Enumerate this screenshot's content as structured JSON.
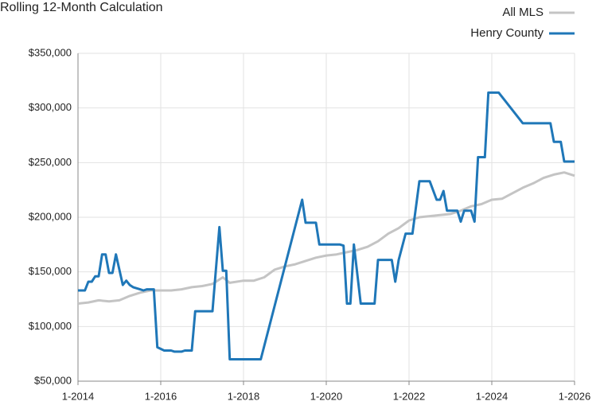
{
  "chart_data": {
    "type": "line",
    "title": "Rolling 12-Month Calculation",
    "legend": "top-right",
    "grid": true,
    "ylim": [
      50000,
      350000
    ],
    "yticks": [
      {
        "value": 50000,
        "label": "$50,000"
      },
      {
        "value": 100000,
        "label": "$100,000"
      },
      {
        "value": 150000,
        "label": "$150,000"
      },
      {
        "value": 200000,
        "label": "$200,000"
      },
      {
        "value": 250000,
        "label": "$250,000"
      },
      {
        "value": 300000,
        "label": "$300,000"
      },
      {
        "value": 350000,
        "label": "$350,000"
      }
    ],
    "xlim": [
      "1-2014",
      "1-2026"
    ],
    "xticks": [
      "1-2014",
      "1-2016",
      "1-2018",
      "1-2020",
      "1-2022",
      "1-2024",
      "1-2026"
    ],
    "series": [
      {
        "name": "All MLS",
        "color": "#c4c4c4",
        "x": [
          "1-2014",
          "4-2014",
          "7-2014",
          "10-2014",
          "1-2015",
          "4-2015",
          "7-2015",
          "10-2015",
          "1-2016",
          "4-2016",
          "7-2016",
          "10-2016",
          "1-2017",
          "4-2017",
          "7-2017",
          "9-2017",
          "1-2018",
          "4-2018",
          "7-2018",
          "10-2018",
          "1-2019",
          "4-2019",
          "7-2019",
          "10-2019",
          "1-2020",
          "4-2020",
          "7-2020",
          "10-2020",
          "1-2021",
          "4-2021",
          "7-2021",
          "10-2021",
          "1-2022",
          "4-2022",
          "7-2022",
          "10-2022",
          "1-2023",
          "4-2023",
          "7-2023",
          "10-2023",
          "1-2024",
          "4-2024",
          "7-2024",
          "10-2024",
          "1-2025",
          "4-2025",
          "7-2025",
          "10-2025",
          "1-2026"
        ],
        "values": [
          121000,
          122000,
          124000,
          123000,
          124000,
          128000,
          131000,
          133000,
          133000,
          133000,
          134000,
          136000,
          137000,
          139000,
          145000,
          140000,
          142000,
          142000,
          145000,
          152000,
          155000,
          157000,
          160000,
          163000,
          165000,
          166000,
          168000,
          170000,
          173000,
          178000,
          185000,
          190000,
          197000,
          200000,
          201000,
          202000,
          203000,
          206000,
          210000,
          212000,
          216000,
          217000,
          222000,
          227000,
          231000,
          236000,
          239000,
          241000,
          238000
        ]
      },
      {
        "name": "Henry County",
        "color": "#1f77b8",
        "x": [
          "1-2014",
          "3-2014",
          "4-2014",
          "5-2014",
          "6-2014",
          "7-2014",
          "8-2014",
          "9-2014",
          "10-2014",
          "11-2014",
          "12-2014",
          "2-2015",
          "3-2015",
          "4-2015",
          "5-2015",
          "7-2015",
          "8-2015",
          "9-2015",
          "11-2015",
          "12-2015",
          "2-2016",
          "4-2016",
          "5-2016",
          "7-2016",
          "8-2016",
          "10-2016",
          "11-2016",
          "4-2017",
          "6-2017",
          "7-2017",
          "8-2017",
          "9-2017",
          "6-2018",
          "6-2019",
          "7-2019",
          "10-2019",
          "11-2019",
          "5-2020",
          "6-2020",
          "7-2020",
          "8-2020",
          "9-2020",
          "11-2020",
          "3-2021",
          "4-2021",
          "8-2021",
          "9-2021",
          "10-2021",
          "12-2021",
          "2-2022",
          "4-2022",
          "7-2022",
          "9-2022",
          "10-2022",
          "11-2022",
          "12-2022",
          "3-2023",
          "4-2023",
          "5-2023",
          "7-2023",
          "8-2023",
          "9-2023",
          "11-2023",
          "12-2023",
          "3-2024",
          "10-2024",
          "6-2025",
          "7-2025",
          "9-2025",
          "10-2025",
          "1-2026"
        ],
        "values": [
          133000,
          133000,
          141000,
          141000,
          146000,
          146000,
          166000,
          166000,
          149000,
          149000,
          166000,
          138000,
          142000,
          138000,
          136000,
          134000,
          133000,
          134000,
          134000,
          81000,
          78000,
          78000,
          77000,
          77000,
          78000,
          78000,
          114000,
          114000,
          191000,
          151000,
          151000,
          70000,
          70000,
          216000,
          195000,
          195000,
          175000,
          175000,
          174000,
          121000,
          121000,
          175000,
          121000,
          121000,
          161000,
          161000,
          141000,
          161000,
          185000,
          185000,
          233000,
          233000,
          216000,
          216000,
          224000,
          206000,
          206000,
          196000,
          206000,
          206000,
          196000,
          255000,
          255000,
          314000,
          314000,
          286000,
          286000,
          269000,
          269000,
          251000,
          251000
        ]
      }
    ]
  }
}
